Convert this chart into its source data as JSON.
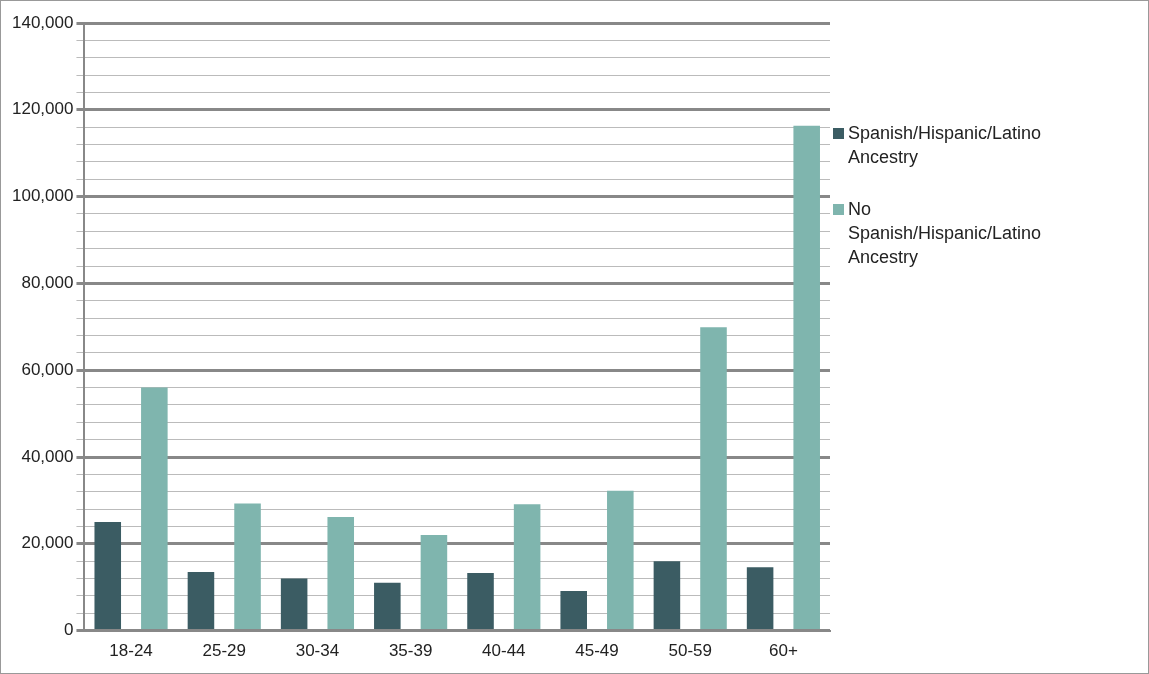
{
  "chart_data": {
    "type": "bar",
    "categories": [
      "18-24",
      "25-29",
      "30-34",
      "35-39",
      "40-44",
      "45-49",
      "50-59",
      "60+"
    ],
    "series": [
      {
        "name": "Spanish/Hispanic/Latino Ancestry",
        "color": "#3b5c63",
        "values": [
          25000,
          13500,
          12000,
          11000,
          13300,
          9100,
          16000,
          14600
        ]
      },
      {
        "name": "No Spanish/Hispanic/Latino Ancestry",
        "color": "#7fb5ae",
        "values": [
          56000,
          29300,
          26200,
          22000,
          29100,
          32200,
          69900,
          116300
        ]
      }
    ],
    "ylim": [
      0,
      140000
    ],
    "yticks": [
      0,
      {
        "value": 4000,
        "label": null
      },
      {
        "value": 8000,
        "label": null
      },
      {
        "value": 12000,
        "label": null
      },
      {
        "value": 16000,
        "label": null
      },
      {
        "value": 20000,
        "label": "20,000"
      },
      {
        "value": 24000,
        "label": null
      },
      {
        "value": 28000,
        "label": null
      },
      {
        "value": 32000,
        "label": null
      },
      {
        "value": 36000,
        "label": null
      },
      {
        "value": 40000,
        "label": "40,000"
      },
      {
        "value": 44000,
        "label": null
      },
      {
        "value": 48000,
        "label": null
      },
      {
        "value": 52000,
        "label": null
      },
      {
        "value": 56000,
        "label": null
      },
      {
        "value": 60000,
        "label": "60,000"
      },
      {
        "value": 64000,
        "label": null
      },
      {
        "value": 68000,
        "label": null
      },
      {
        "value": 72000,
        "label": null
      },
      {
        "value": 76000,
        "label": null
      },
      {
        "value": 80000,
        "label": "80,000"
      },
      {
        "value": 84000,
        "label": null
      },
      {
        "value": 88000,
        "label": null
      },
      {
        "value": 92000,
        "label": null
      },
      {
        "value": 96000,
        "label": null
      },
      {
        "value": 100000,
        "label": "100,000"
      },
      {
        "value": 104000,
        "label": null
      },
      {
        "value": 108000,
        "label": null
      },
      {
        "value": 112000,
        "label": null
      },
      {
        "value": 116000,
        "label": null
      },
      {
        "value": 120000,
        "label": "120,000"
      },
      {
        "value": 124000,
        "label": null
      },
      {
        "value": 128000,
        "label": null
      },
      {
        "value": 132000,
        "label": null
      },
      {
        "value": 136000,
        "label": null
      },
      {
        "value": 140000,
        "label": "140,000"
      }
    ],
    "grid": "y",
    "legend": "right"
  }
}
